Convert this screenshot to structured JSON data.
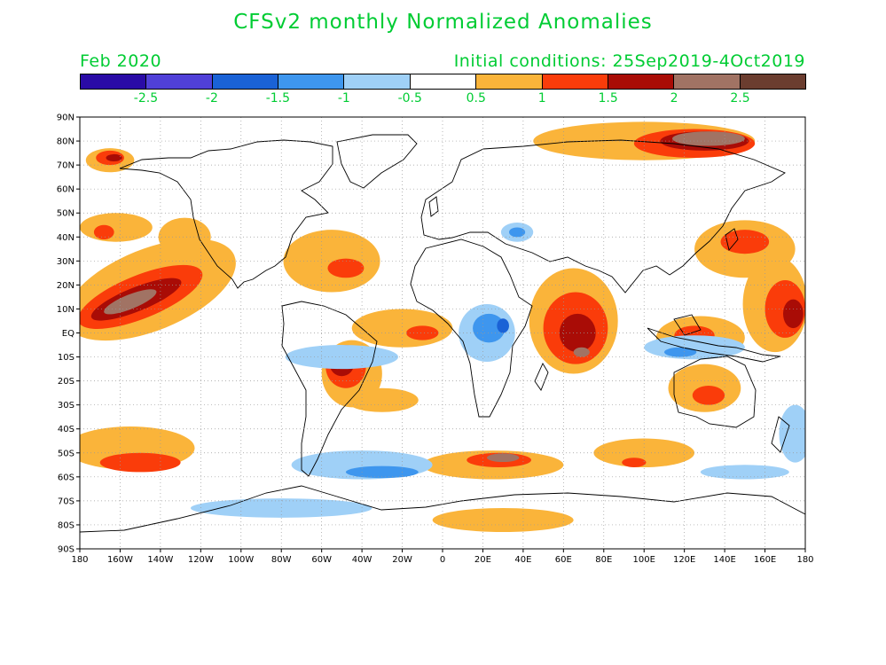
{
  "title": "CFSv2 monthly Normalized Anomalies",
  "valid_month": "Feb 2020",
  "initial_conditions": "Initial conditions: 25Sep2019-4Oct2019",
  "colorbar": {
    "colors": [
      "#2a0ba6",
      "#5040d8",
      "#1a62d6",
      "#3e96ee",
      "#9fd0f7",
      "#ffffff",
      "#fab43a",
      "#fa3c0a",
      "#a90c06",
      "#a17364",
      "#6b3d2f"
    ],
    "labels": [
      "-2.5",
      "-2",
      "-1.5",
      "-1",
      "-0.5",
      "0.5",
      "1",
      "1.5",
      "2",
      "2.5"
    ]
  },
  "axes": {
    "lon_labels": [
      "180",
      "160W",
      "140W",
      "120W",
      "100W",
      "80W",
      "60W",
      "40W",
      "20W",
      "0",
      "20E",
      "40E",
      "60E",
      "80E",
      "100E",
      "120E",
      "140E",
      "160E",
      "180"
    ],
    "lat_labels": [
      "90N",
      "80N",
      "70N",
      "60N",
      "50N",
      "40N",
      "30N",
      "20N",
      "10N",
      "EQ",
      "10S",
      "20S",
      "30S",
      "40S",
      "50S",
      "60S",
      "70S",
      "80S",
      "90S"
    ]
  },
  "anomalies": [
    {
      "level": 1,
      "lon": -165,
      "lat": 72,
      "rx": 12,
      "ry": 5
    },
    {
      "level": 2,
      "lon": -165,
      "lat": 73,
      "rx": 7,
      "ry": 3
    },
    {
      "level": 3,
      "lon": -163,
      "lat": 73,
      "rx": 4,
      "ry": 1.5
    },
    {
      "level": 1,
      "lon": -162,
      "lat": 44,
      "rx": 18,
      "ry": 6
    },
    {
      "level": 2,
      "lon": -168,
      "lat": 42,
      "rx": 5,
      "ry": 3
    },
    {
      "level": 1,
      "lon": -145,
      "lat": 18,
      "rx": 45,
      "ry": 17,
      "rot": -22
    },
    {
      "level": 2,
      "lon": -150,
      "lat": 15,
      "rx": 33,
      "ry": 9,
      "rot": -22
    },
    {
      "level": 3,
      "lon": -152,
      "lat": 14,
      "rx": 24,
      "ry": 5,
      "rot": -22
    },
    {
      "level": 4,
      "lon": -155,
      "lat": 13,
      "rx": 14,
      "ry": 3,
      "rot": -22
    },
    {
      "level": 1,
      "lon": -128,
      "lat": 40,
      "rx": 13,
      "ry": 8
    },
    {
      "level": 1,
      "lon": -55,
      "lat": 30,
      "rx": 24,
      "ry": 13
    },
    {
      "level": 2,
      "lon": -48,
      "lat": 27,
      "rx": 9,
      "ry": 4
    },
    {
      "level": 1,
      "lon": -20,
      "lat": 2,
      "rx": 25,
      "ry": 8
    },
    {
      "level": 2,
      "lon": -10,
      "lat": 0,
      "rx": 8,
      "ry": 3
    },
    {
      "level": 1,
      "lon": -45,
      "lat": -17,
      "rx": 15,
      "ry": 14
    },
    {
      "level": 2,
      "lon": -48,
      "lat": -14,
      "rx": 10,
      "ry": 9
    },
    {
      "level": 3,
      "lon": -50,
      "lat": -13,
      "rx": 6,
      "ry": 5
    },
    {
      "level": 4,
      "lon": -51,
      "lat": -12,
      "rx": 3,
      "ry": 3
    },
    {
      "level": 1,
      "lon": -30,
      "lat": -28,
      "rx": 18,
      "ry": 5
    },
    {
      "level": 1,
      "lon": -155,
      "lat": -48,
      "rx": 32,
      "ry": 9
    },
    {
      "level": 2,
      "lon": -150,
      "lat": -54,
      "rx": 20,
      "ry": 4
    },
    {
      "level": 1,
      "lon": 25,
      "lat": -55,
      "rx": 35,
      "ry": 6
    },
    {
      "level": 2,
      "lon": 28,
      "lat": -53,
      "rx": 16,
      "ry": 3
    },
    {
      "level": 4,
      "lon": 30,
      "lat": -52,
      "rx": 8,
      "ry": 1.8
    },
    {
      "level": 1,
      "lon": 30,
      "lat": -78,
      "rx": 35,
      "ry": 5
    },
    {
      "level": 1,
      "lon": 65,
      "lat": 5,
      "rx": 22,
      "ry": 22
    },
    {
      "level": 2,
      "lon": 66,
      "lat": 2,
      "rx": 16,
      "ry": 15
    },
    {
      "level": 3,
      "lon": 67,
      "lat": 0,
      "rx": 9,
      "ry": 8
    },
    {
      "level": 4,
      "lon": 69,
      "lat": -8,
      "rx": 4,
      "ry": 2
    },
    {
      "level": 1,
      "lon": 100,
      "lat": 80,
      "rx": 55,
      "ry": 8
    },
    {
      "level": 2,
      "lon": 125,
      "lat": 79,
      "rx": 30,
      "ry": 6
    },
    {
      "level": 3,
      "lon": 130,
      "lat": 80,
      "rx": 22,
      "ry": 4
    },
    {
      "level": 4,
      "lon": 132,
      "lat": 81,
      "rx": 18,
      "ry": 3
    },
    {
      "level": 1,
      "lon": 150,
      "lat": 35,
      "rx": 25,
      "ry": 12
    },
    {
      "level": 2,
      "lon": 150,
      "lat": 38,
      "rx": 12,
      "ry": 5
    },
    {
      "level": 1,
      "lon": 165,
      "lat": 12,
      "rx": 16,
      "ry": 20
    },
    {
      "level": 2,
      "lon": 170,
      "lat": 10,
      "rx": 10,
      "ry": 12
    },
    {
      "level": 3,
      "lon": 174,
      "lat": 8,
      "rx": 5,
      "ry": 6
    },
    {
      "level": 1,
      "lon": 128,
      "lat": -2,
      "rx": 22,
      "ry": 9
    },
    {
      "level": 2,
      "lon": 125,
      "lat": -1,
      "rx": 10,
      "ry": 4
    },
    {
      "level": 1,
      "lon": 130,
      "lat": -23,
      "rx": 18,
      "ry": 10
    },
    {
      "level": 2,
      "lon": 132,
      "lat": -26,
      "rx": 8,
      "ry": 4
    },
    {
      "level": 1,
      "lon": 100,
      "lat": -50,
      "rx": 25,
      "ry": 6
    },
    {
      "level": 2,
      "lon": 95,
      "lat": -54,
      "rx": 6,
      "ry": 2
    },
    {
      "level": -1,
      "lon": -50,
      "lat": -10,
      "rx": 28,
      "ry": 5
    },
    {
      "level": -1,
      "lon": -40,
      "lat": -55,
      "rx": 35,
      "ry": 6
    },
    {
      "level": -2,
      "lon": -30,
      "lat": -58,
      "rx": 18,
      "ry": 2.5
    },
    {
      "level": -1,
      "lon": -80,
      "lat": -73,
      "rx": 45,
      "ry": 4
    },
    {
      "level": -1,
      "lon": 22,
      "lat": 0,
      "rx": 14,
      "ry": 12
    },
    {
      "level": -2,
      "lon": 23,
      "lat": 2,
      "rx": 8,
      "ry": 6
    },
    {
      "level": -3,
      "lon": 30,
      "lat": 3,
      "rx": 3,
      "ry": 3
    },
    {
      "level": -1,
      "lon": 37,
      "lat": 42,
      "rx": 8,
      "ry": 4
    },
    {
      "level": -2,
      "lon": 37,
      "lat": 42,
      "rx": 4,
      "ry": 2
    },
    {
      "level": -1,
      "lon": 125,
      "lat": -6,
      "rx": 25,
      "ry": 5
    },
    {
      "level": -2,
      "lon": 118,
      "lat": -8,
      "rx": 8,
      "ry": 2
    },
    {
      "level": -1,
      "lon": 150,
      "lat": -58,
      "rx": 22,
      "ry": 3
    },
    {
      "level": -1,
      "lon": 175,
      "lat": -42,
      "rx": 8,
      "ry": 12
    }
  ]
}
